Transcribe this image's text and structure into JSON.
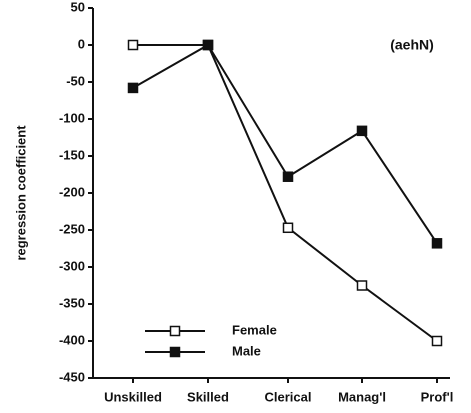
{
  "chart_data": {
    "type": "line",
    "annotation": "(aehN)",
    "y_label": "regression   coefficient",
    "categories": [
      "Unskilled",
      "Skilled",
      "Clerical",
      "Manag'l",
      "Prof'l"
    ],
    "series": [
      {
        "name": "Female",
        "color": "#111111",
        "marker": "open-square",
        "values": [
          0,
          0,
          -247,
          -325,
          -400
        ]
      },
      {
        "name": "Male",
        "color": "#111111",
        "marker": "filled-square",
        "values": [
          -58,
          0,
          -178,
          -116,
          -268
        ]
      }
    ],
    "ylim": [
      -450,
      50
    ],
    "yticks": [
      50,
      0,
      -50,
      -100,
      -150,
      -200,
      -250,
      -300,
      -350,
      -400,
      -450
    ],
    "legend": "lower left"
  }
}
